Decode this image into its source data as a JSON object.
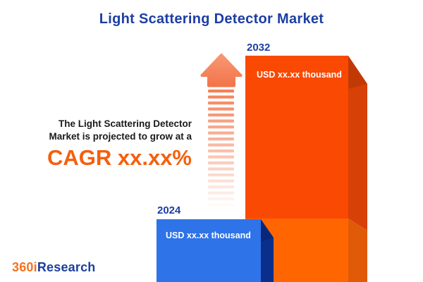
{
  "title": "Light Scattering Detector Market",
  "tagline": {
    "line1": "The Light Scattering Detector",
    "line2": "Market is projected to grow at a",
    "cagr": "CAGR xx.xx%"
  },
  "logo": {
    "prefix": "360i",
    "suffix": "Research"
  },
  "chart_data": {
    "type": "bar",
    "categories": [
      "2024",
      "2032"
    ],
    "values": [
      "xx.xx",
      "xx.xx"
    ],
    "unit": "USD thousand",
    "value_labels": [
      "USD xx.xx thousand",
      "USD xx.xx thousand"
    ],
    "title": "Light Scattering Detector Market",
    "annotations": [
      "CAGR xx.xx%"
    ],
    "legend": "none",
    "grid": "off",
    "axes": "none"
  },
  "colors": {
    "background": "#FFFFFF",
    "title_blue": "#1D3EA4",
    "text_dark": "#1A1A1A",
    "cagr_orange": "#F4600F",
    "bar_2024_front": "#2E73E8",
    "bar_2024_side": "#0A2E8C",
    "bar_2032_front_upper": "#F94903",
    "bar_2032_front_lower": "#FF6602",
    "bar_2032_side_upper": "#D74107",
    "bar_2032_side_lower": "#E05A07",
    "arrow_head_top": "#F79872",
    "arrow_head_bottom": "#F3744A",
    "arrow_stripe": "#F4794F",
    "logo_orange": "#F4741F",
    "logo_blue": "#1C3F9E"
  }
}
